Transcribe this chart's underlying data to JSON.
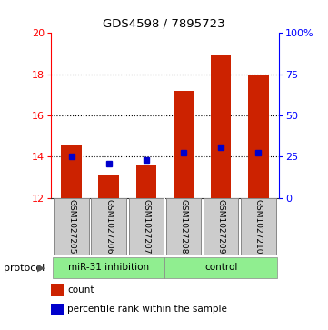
{
  "title": "GDS4598 / 7895723",
  "samples": [
    "GSM1027205",
    "GSM1027206",
    "GSM1027207",
    "GSM1027208",
    "GSM1027209",
    "GSM1027210"
  ],
  "counts": [
    14.6,
    13.1,
    13.6,
    17.2,
    18.95,
    17.95
  ],
  "percentile_ranks": [
    14.0,
    13.65,
    13.85,
    14.2,
    14.45,
    14.2
  ],
  "bar_bottom": 12.0,
  "ylim_left": [
    12,
    20
  ],
  "ylim_right": [
    0,
    100
  ],
  "yticks_left": [
    12,
    14,
    16,
    18,
    20
  ],
  "yticks_right": [
    0,
    25,
    50,
    75,
    100
  ],
  "ytick_labels_right": [
    "0",
    "25",
    "50",
    "75",
    "100%"
  ],
  "gridlines": [
    14,
    16,
    18
  ],
  "group_labels": [
    "miR-31 inhibition",
    "control"
  ],
  "group_color": "#90EE90",
  "bar_color": "#CC2200",
  "percentile_color": "#0000CC",
  "background_color": "#ffffff",
  "sample_box_color": "#cccccc",
  "sample_box_border": "#888888",
  "protocol_label": "protocol",
  "legend_items": [
    {
      "color": "#CC2200",
      "label": "count"
    },
    {
      "color": "#0000CC",
      "label": "percentile rank within the sample"
    }
  ]
}
